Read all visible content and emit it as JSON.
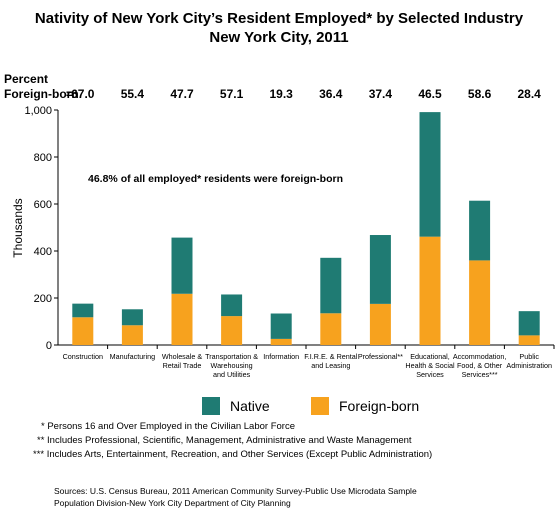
{
  "title_line1": "Nativity of New York City’s Resident Employed* by Selected Industry",
  "title_line2": "New York City, 2011",
  "percent_label_line1": "Percent",
  "percent_label_line2": "Foreign-born",
  "percent_equals": "=",
  "annotation": "46.8% of all employed* residents were foreign-born",
  "footnotes": [
    "*  Persons 16 and Over Employed in the Civilian Labor Force",
    "**  Includes Professional, Scientific, Management, Administrative and Waste Management",
    "***  Includes Arts, Entertainment, Recreation, and Other Services (Except Public Administration)"
  ],
  "sources": [
    "Sources: U.S. Census Bureau, 2011 American Community Survey-Public Use Microdata Sample",
    "Population Division-New York City Department of City Planning"
  ],
  "colors": {
    "native": "#1f7b73",
    "foreign_born": "#f7a21e",
    "axis": "#000000"
  },
  "chart_data": {
    "type": "bar",
    "stacked": true,
    "ylabel": "Thousands",
    "ylim": [
      0,
      1000
    ],
    "yticks": [
      "0",
      "200",
      "400",
      "600",
      "800",
      "1,000"
    ],
    "ytick_values": [
      0,
      200,
      400,
      600,
      800,
      1000
    ],
    "categories": [
      [
        "Construction"
      ],
      [
        "Manufacturing"
      ],
      [
        "Wholesale &",
        "Retail Trade"
      ],
      [
        "Transportation &",
        "Warehousing",
        "and Utilities"
      ],
      [
        "Information"
      ],
      [
        "F.I.R.E. & Rental",
        "and Leasing"
      ],
      [
        "Professional**"
      ],
      [
        "Educational,",
        "Health & Social",
        "Services"
      ],
      [
        "Accommodation,",
        "Food, & Other",
        "Services***"
      ],
      [
        "Public",
        "Administration"
      ]
    ],
    "percent_foreign_born": [
      "67.0",
      "55.4",
      "47.7",
      "57.1",
      "19.3",
      "36.4",
      "37.4",
      "46.5",
      "58.6",
      "28.4"
    ],
    "series": [
      {
        "name": "Foreign-born",
        "values": [
          118,
          84,
          218,
          123,
          26,
          135,
          175,
          461,
          360,
          41
        ]
      },
      {
        "name": "Native",
        "values": [
          58,
          68,
          239,
          92,
          108,
          236,
          293,
          530,
          254,
          103
        ]
      }
    ],
    "legend": [
      "Native",
      "Foreign-born"
    ],
    "legend_position": "bottom"
  }
}
